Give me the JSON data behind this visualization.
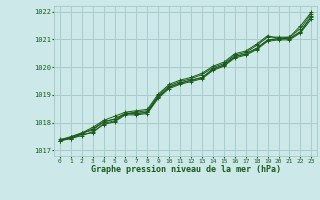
{
  "bg_color": "#cce8e8",
  "grid_color": "#aacccc",
  "line_color": "#1a5c1a",
  "marker_color": "#1a5c1a",
  "xlabel": "Graphe pression niveau de la mer (hPa)",
  "xlabel_fontsize": 6.0,
  "xlabel_color": "#1a5c1a",
  "tick_color": "#1a5c1a",
  "xlim": [
    -0.5,
    23.5
  ],
  "ylim": [
    1016.8,
    1022.2
  ],
  "yticks": [
    1017,
    1018,
    1019,
    1020,
    1021,
    1022
  ],
  "xticks": [
    0,
    1,
    2,
    3,
    4,
    5,
    6,
    7,
    8,
    9,
    10,
    11,
    12,
    13,
    14,
    15,
    16,
    17,
    18,
    19,
    20,
    21,
    22,
    23
  ],
  "lines": [
    [
      1017.35,
      1017.43,
      1017.58,
      1017.63,
      1017.97,
      1018.07,
      1018.32,
      1018.32,
      1018.37,
      1018.92,
      1019.27,
      1019.42,
      1019.52,
      1019.62,
      1019.92,
      1020.07,
      1020.37,
      1020.47,
      1020.67,
      1020.97,
      1021.02,
      1021.02,
      1021.27,
      1021.82
    ],
    [
      1017.35,
      1017.45,
      1017.6,
      1017.78,
      1018.03,
      1018.13,
      1018.33,
      1018.38,
      1018.43,
      1018.98,
      1019.33,
      1019.48,
      1019.58,
      1019.73,
      1019.98,
      1020.13,
      1020.43,
      1020.53,
      1020.78,
      1021.08,
      1021.08,
      1021.08,
      1021.38,
      1021.93
    ],
    [
      1017.35,
      1017.5,
      1017.63,
      1017.83,
      1018.08,
      1018.23,
      1018.38,
      1018.43,
      1018.48,
      1019.03,
      1019.38,
      1019.53,
      1019.63,
      1019.78,
      1020.03,
      1020.18,
      1020.48,
      1020.58,
      1020.83,
      1021.13,
      1021.03,
      1021.08,
      1021.48,
      1021.98
    ],
    [
      1017.35,
      1017.43,
      1017.53,
      1017.68,
      1017.93,
      1018.03,
      1018.28,
      1018.28,
      1018.33,
      1018.88,
      1019.23,
      1019.38,
      1019.48,
      1019.58,
      1019.88,
      1020.03,
      1020.33,
      1020.43,
      1020.63,
      1020.93,
      1020.98,
      1020.98,
      1021.23,
      1021.73
    ],
    [
      1017.4,
      1017.48,
      1017.63,
      1017.73,
      1018.03,
      1018.13,
      1018.33,
      1018.33,
      1018.38,
      1018.93,
      1019.28,
      1019.43,
      1019.53,
      1019.63,
      1019.93,
      1020.08,
      1020.38,
      1020.48,
      1020.68,
      1020.98,
      1021.03,
      1021.03,
      1021.28,
      1021.83
    ]
  ]
}
